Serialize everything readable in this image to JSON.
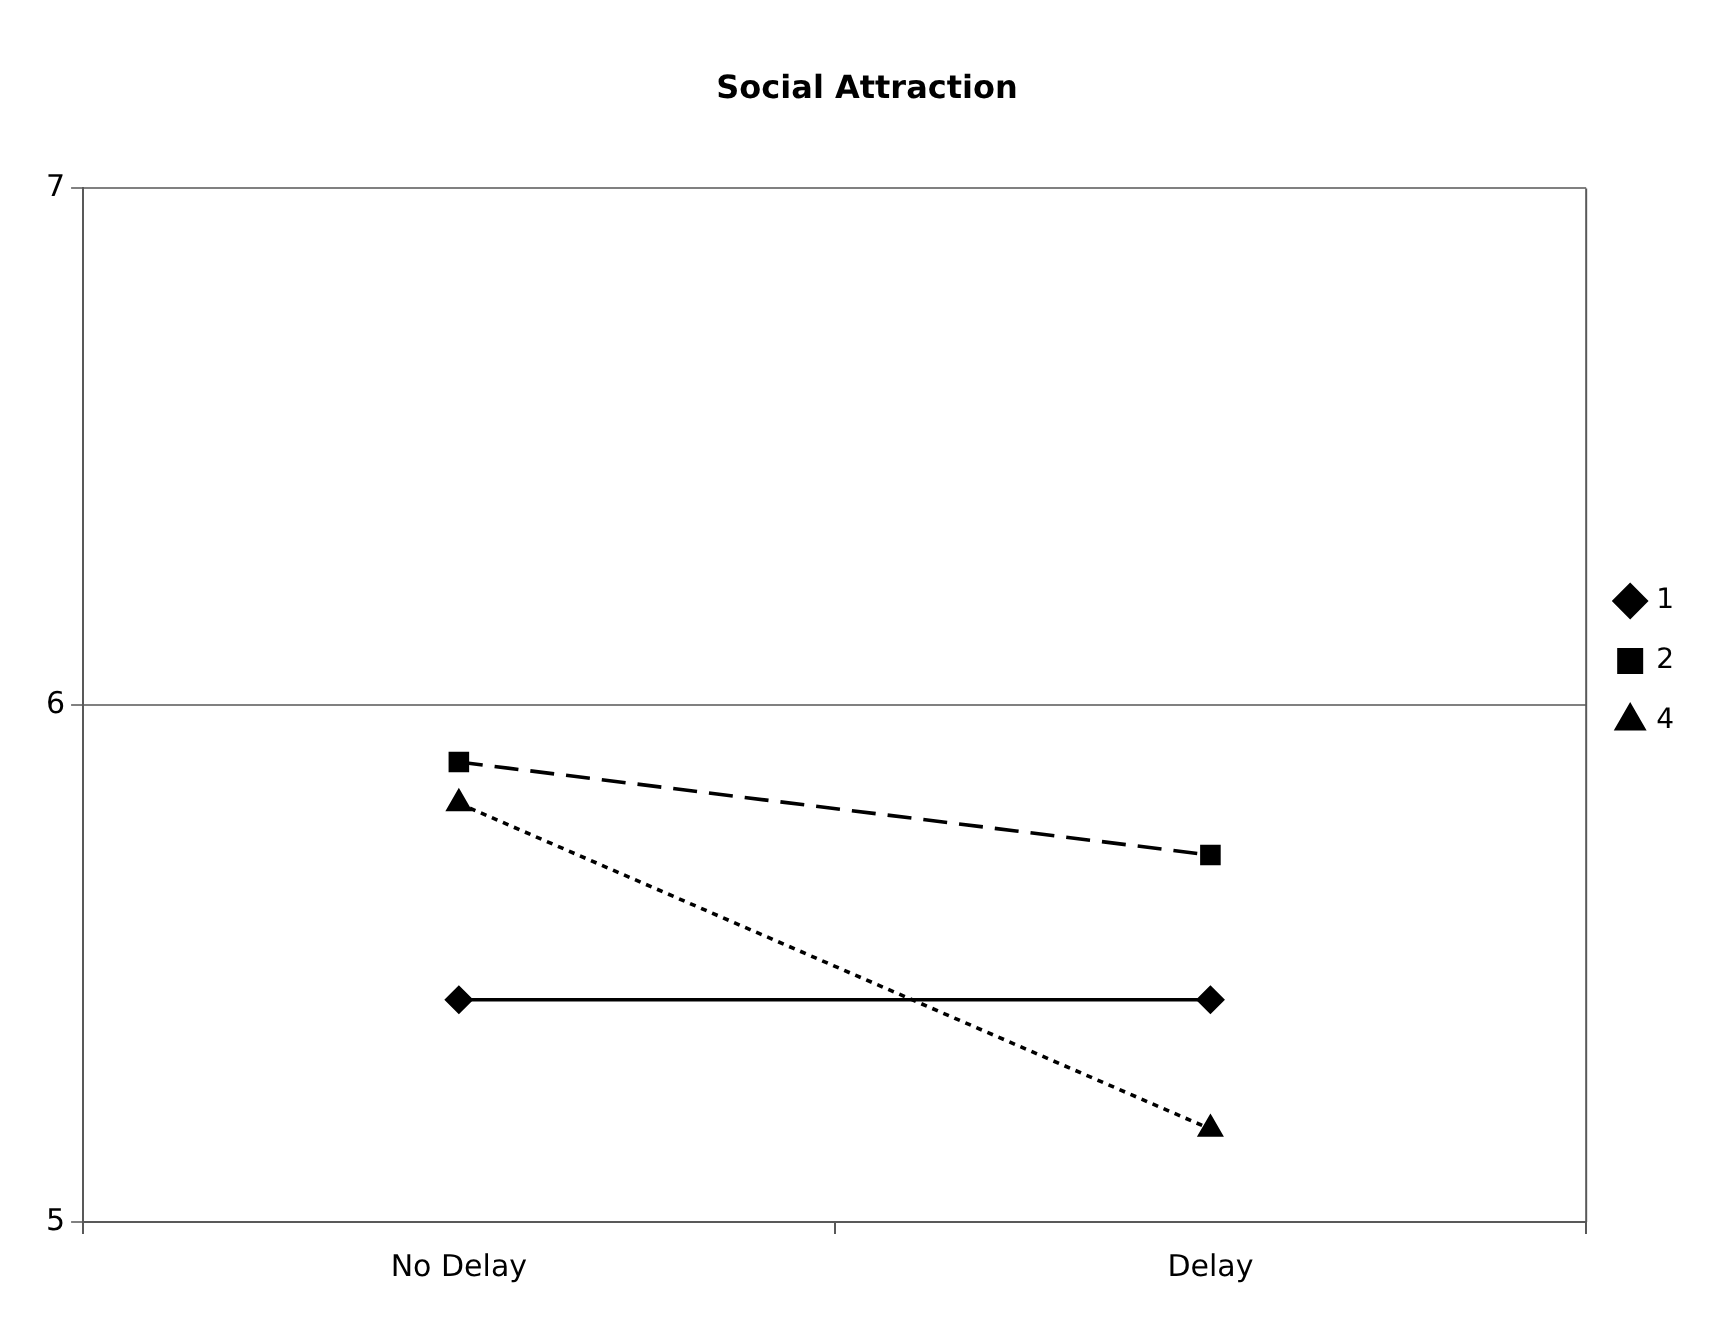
{
  "chart_data": {
    "type": "line",
    "title": "Social Attraction",
    "categories": [
      "No Delay",
      "Delay"
    ],
    "series": [
      {
        "name": "1",
        "color": "#000000",
        "values": [
          5.43,
          5.43
        ],
        "marker": "diamond",
        "line_style": "solid"
      },
      {
        "name": "2",
        "color": "#000000",
        "values": [
          5.89,
          5.71
        ],
        "marker": "square",
        "line_style": "dashed"
      },
      {
        "name": "4",
        "color": "#000000",
        "values": [
          5.81,
          5.18
        ],
        "marker": "triangle",
        "line_style": "dotted"
      }
    ],
    "ylim": [
      5,
      7
    ],
    "yticks": [
      5,
      6,
      7
    ],
    "grid": "y",
    "legend": "right"
  }
}
